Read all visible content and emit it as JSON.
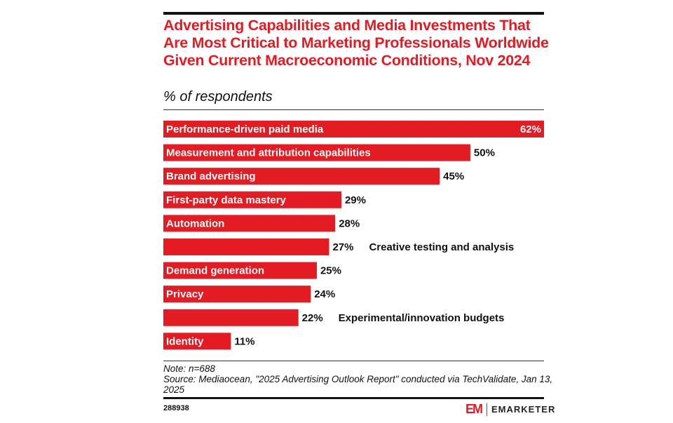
{
  "chart_data": {
    "type": "bar",
    "orientation": "horizontal",
    "title": "Advertising Capabilities and Media Investments That Are Most Critical to Marketing Professionals Worldwide Given Current Macroeconomic Conditions, Nov 2024",
    "subtitle": "% of respondents",
    "xlabel": "",
    "ylabel": "",
    "xlim": [
      0,
      62
    ],
    "grid": false,
    "value_suffix": "%",
    "categories": [
      "Performance-driven paid media",
      "Measurement and attribution capabilities",
      "Brand advertising",
      "First-party data mastery",
      "Automation",
      "Creative testing and analysis",
      "Demand generation",
      "Privacy",
      "Experimental/innovation budgets",
      "Identity"
    ],
    "values": [
      62,
      50,
      45,
      29,
      28,
      27,
      25,
      24,
      22,
      11
    ],
    "value_labels": [
      "62%",
      "50%",
      "45%",
      "29%",
      "28%",
      "27%",
      "25%",
      "24%",
      "22%",
      "11%"
    ],
    "bar_color": "#e31b23"
  },
  "note": "Note: n=688",
  "source": "Source: Mediaocean, \"2025 Advertising Outlook Report\" conducted via TechValidate, Jan 13, 2025",
  "chart_id": "288938",
  "brand": {
    "mark": "EM",
    "name": "EMARKETER",
    "color": "#e31b23"
  }
}
